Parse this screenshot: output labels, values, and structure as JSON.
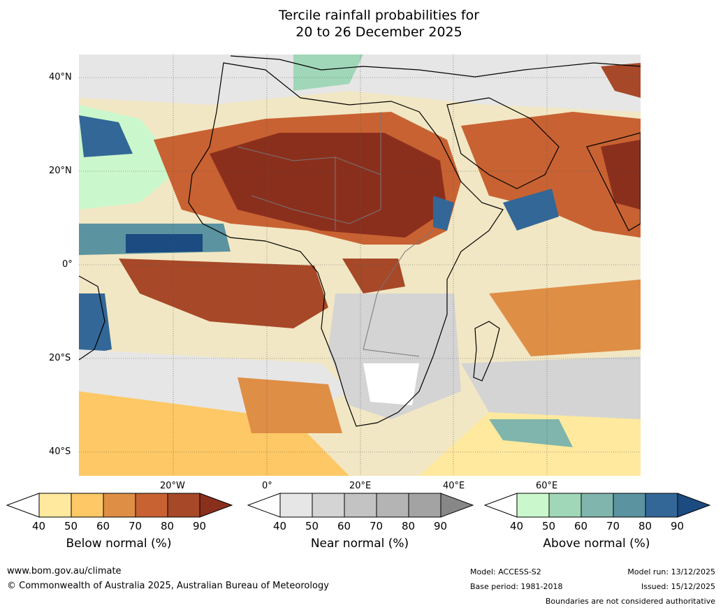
{
  "title_line1": "Tercile rainfall probabilities for",
  "title_line2": "20 to 26 December 2025",
  "lat_labels": [
    "40°N",
    "20°N",
    "0°",
    "20°S",
    "40°S"
  ],
  "lon_labels": [
    "20°W",
    "0°",
    "20°E",
    "40°E",
    "60°E"
  ],
  "colorbars": [
    {
      "label": "Below normal (%)",
      "ticks": [
        "40",
        "50",
        "60",
        "70",
        "80",
        "90"
      ],
      "colors": [
        "#ffffff",
        "#fee99e",
        "#fdc865",
        "#df8e46",
        "#c86232",
        "#a74828",
        "#8b2f1d"
      ]
    },
    {
      "label": "Near normal (%)",
      "ticks": [
        "40",
        "50",
        "60",
        "70",
        "80",
        "90"
      ],
      "colors": [
        "#ffffff",
        "#e6e6e6",
        "#d4d4d4",
        "#c3c3c3",
        "#b4b4b4",
        "#a3a3a3",
        "#878787"
      ]
    },
    {
      "label": "Above normal (%)",
      "ticks": [
        "40",
        "50",
        "60",
        "70",
        "80",
        "90"
      ],
      "colors": [
        "#ffffff",
        "#cbf7cc",
        "#a0d7b8",
        "#7fb5ac",
        "#5b93a0",
        "#336797",
        "#1b4b80"
      ]
    }
  ],
  "footer": {
    "website": "www.bom.gov.au/climate",
    "copyright": "© Commonwealth of Australia 2025, Australian Bureau of Meteorology",
    "model": "Model: ACCESS-S2",
    "base_period": "Base period: 1981-2018",
    "model_run": "Model run: 13/12/2025",
    "issued": "Issued: 15/12/2025",
    "disclaimer": "Boundaries are not considered authoritative"
  }
}
